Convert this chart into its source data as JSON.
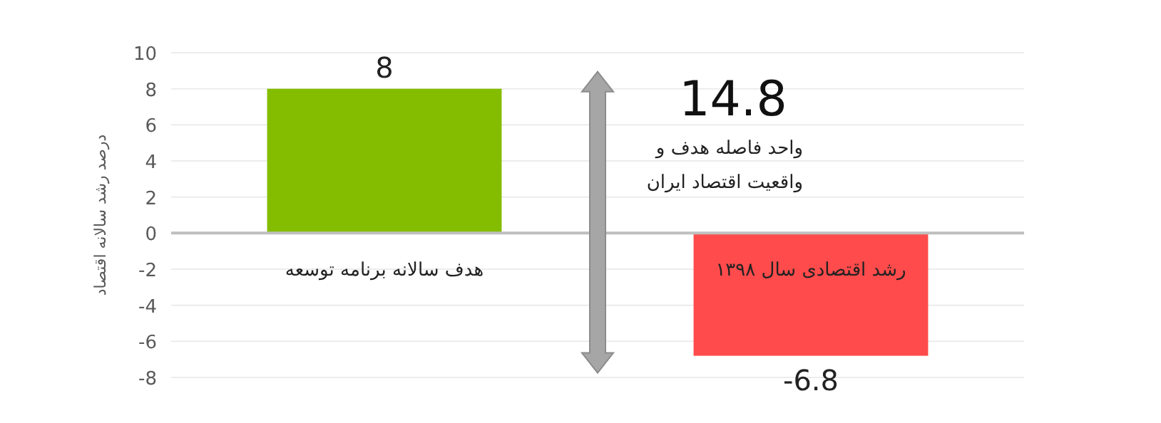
{
  "chart_data": {
    "type": "bar",
    "ylabel": "درصد رشد سالانه اقتصاد",
    "categories": [
      "هدف سالانه برنامه توسعه",
      "رشد اقتصادی سال ۱۳۹۸"
    ],
    "values": [
      8,
      -6.8
    ],
    "colors": [
      "#84bd00",
      "#ff4b4b"
    ],
    "data_labels": true,
    "ylim": [
      -8,
      10
    ],
    "yticks": [
      -8,
      -6,
      -4,
      -2,
      0,
      2,
      4,
      6,
      8,
      10
    ],
    "grid": "y",
    "annotations": [
      "14.8",
      "واحد فاصله هدف و\nواقعیت اقتصاد ایران"
    ]
  }
}
